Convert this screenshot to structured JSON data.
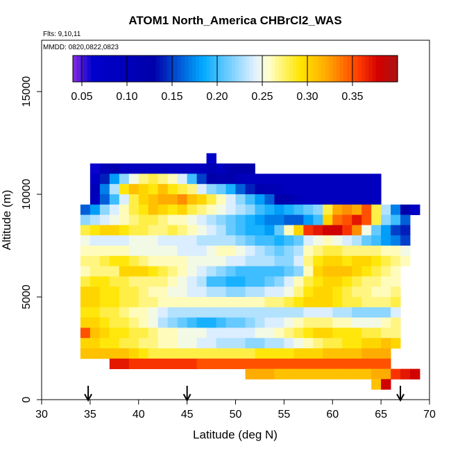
{
  "chart_data": {
    "type": "heatmap",
    "title": "ATOM1 North_America CHBrCl2_WAS",
    "flights_note": "Flts: 9,10,11",
    "dates_note": "MMDD: 0820,0822,0823",
    "xlabel": "Latitude (deg N)",
    "ylabel": "Altitude (m)",
    "xlim": [
      30,
      70
    ],
    "ylim": [
      0,
      17500
    ],
    "x_ticks": [
      30,
      35,
      40,
      45,
      50,
      55,
      60,
      65,
      70
    ],
    "y_ticks": [
      0,
      5000,
      10000,
      15000
    ],
    "colorbar": {
      "range": [
        0.04,
        0.4
      ],
      "ticks": [
        0.05,
        0.1,
        0.15,
        0.2,
        0.25,
        0.3,
        0.35
      ],
      "tick_labels": [
        "0.05",
        "0.10",
        "0.15",
        "0.20",
        "0.25",
        "0.30",
        "0.35"
      ]
    },
    "arrows_lat": [
      34.8,
      45.0,
      67.0
    ],
    "grid": false,
    "cell_size": {
      "lat": 1.0,
      "alt_m": 500
    },
    "rows": [
      {
        "alt": 11750,
        "lat_start": 47.0,
        "values": [
          0.07
        ]
      },
      {
        "alt": 11250,
        "lat_start": 35.0,
        "values": [
          0.06,
          0.1,
          0.12,
          0.09,
          0.09,
          0.09,
          0.09,
          0.09,
          0.09,
          0.09,
          0.09,
          0.09,
          0.11,
          0.09,
          0.12,
          0.13,
          0.13
        ]
      },
      {
        "alt": 10750,
        "lat_start": 35.0,
        "values": [
          0.08,
          0.14,
          0.18,
          0.22,
          0.25,
          0.27,
          0.28,
          0.27,
          0.26,
          0.24,
          0.2,
          0.15,
          0.13,
          0.12,
          0.12,
          0.1,
          0.09,
          0.09,
          0.09,
          0.09,
          0.09,
          0.09,
          0.09,
          0.09,
          0.09,
          0.09,
          0.09,
          0.09,
          0.09,
          0.09
        ]
      },
      {
        "alt": 10250,
        "lat_start": 35.0,
        "values": [
          0.1,
          0.17,
          0.23,
          0.29,
          0.31,
          0.3,
          0.29,
          0.31,
          0.29,
          0.28,
          0.27,
          0.24,
          0.22,
          0.21,
          0.19,
          0.16,
          0.14,
          0.12,
          0.11,
          0.1,
          0.09,
          0.09,
          0.09,
          0.09,
          0.09,
          0.09,
          0.09,
          0.09,
          0.09,
          0.09
        ]
      },
      {
        "alt": 9750,
        "lat_start": 35.0,
        "values": [
          0.09,
          0.16,
          0.2,
          0.24,
          0.28,
          0.3,
          0.31,
          0.32,
          0.32,
          0.33,
          0.31,
          0.3,
          0.28,
          0.26,
          0.24,
          0.22,
          0.2,
          0.18,
          0.16,
          0.13,
          0.12,
          0.1,
          0.09,
          0.09,
          0.09,
          0.09,
          0.09,
          0.09,
          0.09,
          0.09
        ]
      },
      {
        "alt": 9250,
        "lat_start": 34.0,
        "values": [
          0.16,
          0.18,
          0.22,
          0.24,
          0.26,
          0.28,
          0.29,
          0.31,
          0.3,
          0.29,
          0.3,
          0.28,
          0.27,
          0.26,
          0.25,
          0.24,
          0.23,
          0.22,
          0.2,
          0.19,
          0.18,
          0.19,
          0.2,
          0.21,
          0.22,
          0.28,
          0.32,
          0.33,
          0.32,
          0.35,
          0.28,
          0.23,
          0.17,
          0.13,
          0.08
        ]
      },
      {
        "alt": 8750,
        "lat_start": 34.0,
        "values": [
          0.22,
          0.23,
          0.24,
          0.25,
          0.26,
          0.27,
          0.28,
          0.28,
          0.27,
          0.26,
          0.26,
          0.25,
          0.24,
          0.23,
          0.22,
          0.21,
          0.2,
          0.19,
          0.18,
          0.17,
          0.17,
          0.16,
          0.16,
          0.18,
          0.2,
          0.3,
          0.34,
          0.35,
          0.37,
          0.35,
          0.28,
          0.22,
          0.2,
          0.16
        ]
      },
      {
        "alt": 8250,
        "lat_start": 34.0,
        "values": [
          0.28,
          0.29,
          0.3,
          0.3,
          0.29,
          0.28,
          0.28,
          0.27,
          0.27,
          0.28,
          0.27,
          0.26,
          0.25,
          0.24,
          0.23,
          0.21,
          0.2,
          0.19,
          0.19,
          0.18,
          0.21,
          0.26,
          0.3,
          0.36,
          0.37,
          0.38,
          0.38,
          0.36,
          0.33,
          0.25,
          0.21,
          0.18,
          0.15,
          0.14
        ]
      },
      {
        "alt": 7750,
        "lat_start": 34.0,
        "values": [
          0.25,
          0.24,
          0.24,
          0.24,
          0.24,
          0.25,
          0.25,
          0.25,
          0.24,
          0.24,
          0.24,
          0.24,
          0.23,
          0.23,
          0.23,
          0.23,
          0.22,
          0.21,
          0.2,
          0.2,
          0.19,
          0.2,
          0.21,
          0.24,
          0.25,
          0.26,
          0.25,
          0.24,
          0.23,
          0.21,
          0.2,
          0.18,
          0.17,
          0.15
        ]
      },
      {
        "alt": 7250,
        "lat_start": 34.0,
        "values": [
          0.26,
          0.26,
          0.26,
          0.26,
          0.26,
          0.25,
          0.25,
          0.25,
          0.25,
          0.25,
          0.24,
          0.24,
          0.24,
          0.25,
          0.26,
          0.26,
          0.25,
          0.24,
          0.23,
          0.22,
          0.21,
          0.22,
          0.23,
          0.26,
          0.27,
          0.28,
          0.28,
          0.27,
          0.27,
          0.27,
          0.27,
          0.26,
          0.26,
          0.25
        ]
      },
      {
        "alt": 6750,
        "lat_start": 34.0,
        "values": [
          0.27,
          0.27,
          0.28,
          0.29,
          0.29,
          0.28,
          0.27,
          0.26,
          0.26,
          0.26,
          0.26,
          0.25,
          0.25,
          0.25,
          0.25,
          0.24,
          0.24,
          0.23,
          0.23,
          0.23,
          0.22,
          0.22,
          0.24,
          0.27,
          0.29,
          0.3,
          0.3,
          0.29,
          0.3,
          0.3,
          0.29,
          0.28,
          0.27,
          0.26
        ]
      },
      {
        "alt": 6250,
        "lat_start": 34.0,
        "values": [
          0.26,
          0.27,
          0.27,
          0.27,
          0.3,
          0.3,
          0.3,
          0.29,
          0.28,
          0.27,
          0.26,
          0.25,
          0.24,
          0.23,
          0.22,
          0.21,
          0.2,
          0.2,
          0.2,
          0.2,
          0.2,
          0.21,
          0.22,
          0.26,
          0.3,
          0.31,
          0.31,
          0.31,
          0.3,
          0.29,
          0.28,
          0.27,
          0.26
        ]
      },
      {
        "alt": 5750,
        "lat_start": 34.0,
        "values": [
          0.28,
          0.29,
          0.29,
          0.28,
          0.28,
          0.27,
          0.27,
          0.27,
          0.27,
          0.26,
          0.25,
          0.24,
          0.23,
          0.2,
          0.2,
          0.19,
          0.19,
          0.2,
          0.2,
          0.21,
          0.22,
          0.24,
          0.26,
          0.28,
          0.29,
          0.3,
          0.3,
          0.29,
          0.28,
          0.27,
          0.27,
          0.26,
          0.26
        ]
      },
      {
        "alt": 5250,
        "lat_start": 34.0,
        "values": [
          0.3,
          0.3,
          0.29,
          0.29,
          0.28,
          0.28,
          0.27,
          0.26,
          0.26,
          0.25,
          0.25,
          0.24,
          0.24,
          0.23,
          0.23,
          0.22,
          0.22,
          0.23,
          0.23,
          0.24,
          0.24,
          0.25,
          0.27,
          0.29,
          0.3,
          0.3,
          0.29,
          0.28,
          0.27,
          0.27,
          0.26,
          0.26,
          0.27
        ]
      },
      {
        "alt": 4750,
        "lat_start": 34.0,
        "values": [
          0.3,
          0.3,
          0.29,
          0.29,
          0.28,
          0.28,
          0.27,
          0.27,
          0.26,
          0.26,
          0.26,
          0.26,
          0.26,
          0.26,
          0.26,
          0.26,
          0.26,
          0.26,
          0.26,
          0.27,
          0.27,
          0.28,
          0.29,
          0.3,
          0.3,
          0.3,
          0.29,
          0.28,
          0.28,
          0.27,
          0.27,
          0.27,
          0.28
        ]
      },
      {
        "alt": 4250,
        "lat_start": 34.0,
        "values": [
          0.29,
          0.29,
          0.28,
          0.28,
          0.27,
          0.26,
          0.26,
          0.25,
          0.24,
          0.23,
          0.23,
          0.23,
          0.23,
          0.23,
          0.23,
          0.23,
          0.23,
          0.23,
          0.23,
          0.23,
          0.23,
          0.23,
          0.23,
          0.24,
          0.24,
          0.24,
          0.23,
          0.23,
          0.22,
          0.22,
          0.22,
          0.22,
          0.24
        ]
      },
      {
        "alt": 3750,
        "lat_start": 34.0,
        "values": [
          0.3,
          0.3,
          0.29,
          0.28,
          0.28,
          0.27,
          0.26,
          0.25,
          0.23,
          0.22,
          0.21,
          0.2,
          0.19,
          0.19,
          0.2,
          0.21,
          0.21,
          0.22,
          0.23,
          0.24,
          0.24,
          0.25,
          0.26,
          0.27,
          0.27,
          0.27,
          0.26,
          0.26,
          0.25,
          0.25,
          0.25,
          0.26,
          0.27
        ]
      },
      {
        "alt": 3250,
        "lat_start": 34.0,
        "values": [
          0.35,
          0.31,
          0.3,
          0.29,
          0.29,
          0.28,
          0.28,
          0.27,
          0.26,
          0.26,
          0.25,
          0.25,
          0.25,
          0.24,
          0.24,
          0.24,
          0.24,
          0.24,
          0.25,
          0.25,
          0.26,
          0.27,
          0.28,
          0.29,
          0.3,
          0.3,
          0.29,
          0.29,
          0.29,
          0.28,
          0.28,
          0.27,
          0.27
        ]
      },
      {
        "alt": 2750,
        "lat_start": 34.0,
        "values": [
          0.3,
          0.3,
          0.29,
          0.29,
          0.28,
          0.28,
          0.27,
          0.27,
          0.26,
          0.26,
          0.25,
          0.25,
          0.24,
          0.24,
          0.23,
          0.23,
          0.23,
          0.22,
          0.22,
          0.23,
          0.23,
          0.24,
          0.25,
          0.26,
          0.27,
          0.28,
          0.28,
          0.29,
          0.29,
          0.3,
          0.3,
          0.31,
          0.3
        ]
      },
      {
        "alt": 2250,
        "lat_start": 34.0,
        "values": [
          0.31,
          0.31,
          0.31,
          0.31,
          0.31,
          0.3,
          0.29,
          0.28,
          0.28,
          0.28,
          0.28,
          0.28,
          0.28,
          0.28,
          0.28,
          0.28,
          0.28,
          0.28,
          0.29,
          0.29,
          0.29,
          0.29,
          0.3,
          0.3,
          0.3,
          0.31,
          0.31,
          0.31,
          0.31,
          0.32,
          0.32,
          0.32
        ]
      },
      {
        "alt": 1750,
        "lat_start": 37.0,
        "values": [
          0.37,
          0.37,
          0.36,
          0.36,
          0.36,
          0.36,
          0.36,
          0.36,
          0.36,
          0.35,
          0.35,
          0.35,
          0.35,
          0.35,
          0.35,
          0.35,
          0.35,
          0.35,
          0.35,
          0.35,
          0.35,
          0.35,
          0.35,
          0.35,
          0.35,
          0.35,
          0.35,
          0.35,
          0.35
        ]
      },
      {
        "alt": 1250,
        "lat_start": 51.0,
        "values": [
          0.32,
          0.32,
          0.32,
          0.31,
          0.31,
          0.31,
          0.31,
          0.31,
          0.31,
          0.31,
          0.31,
          0.31,
          0.31,
          0.32,
          0.32,
          0.36,
          0.37,
          0.38
        ]
      },
      {
        "alt": 750,
        "lat_start": 64.0,
        "values": [
          0.31,
          0.38
        ]
      }
    ]
  }
}
